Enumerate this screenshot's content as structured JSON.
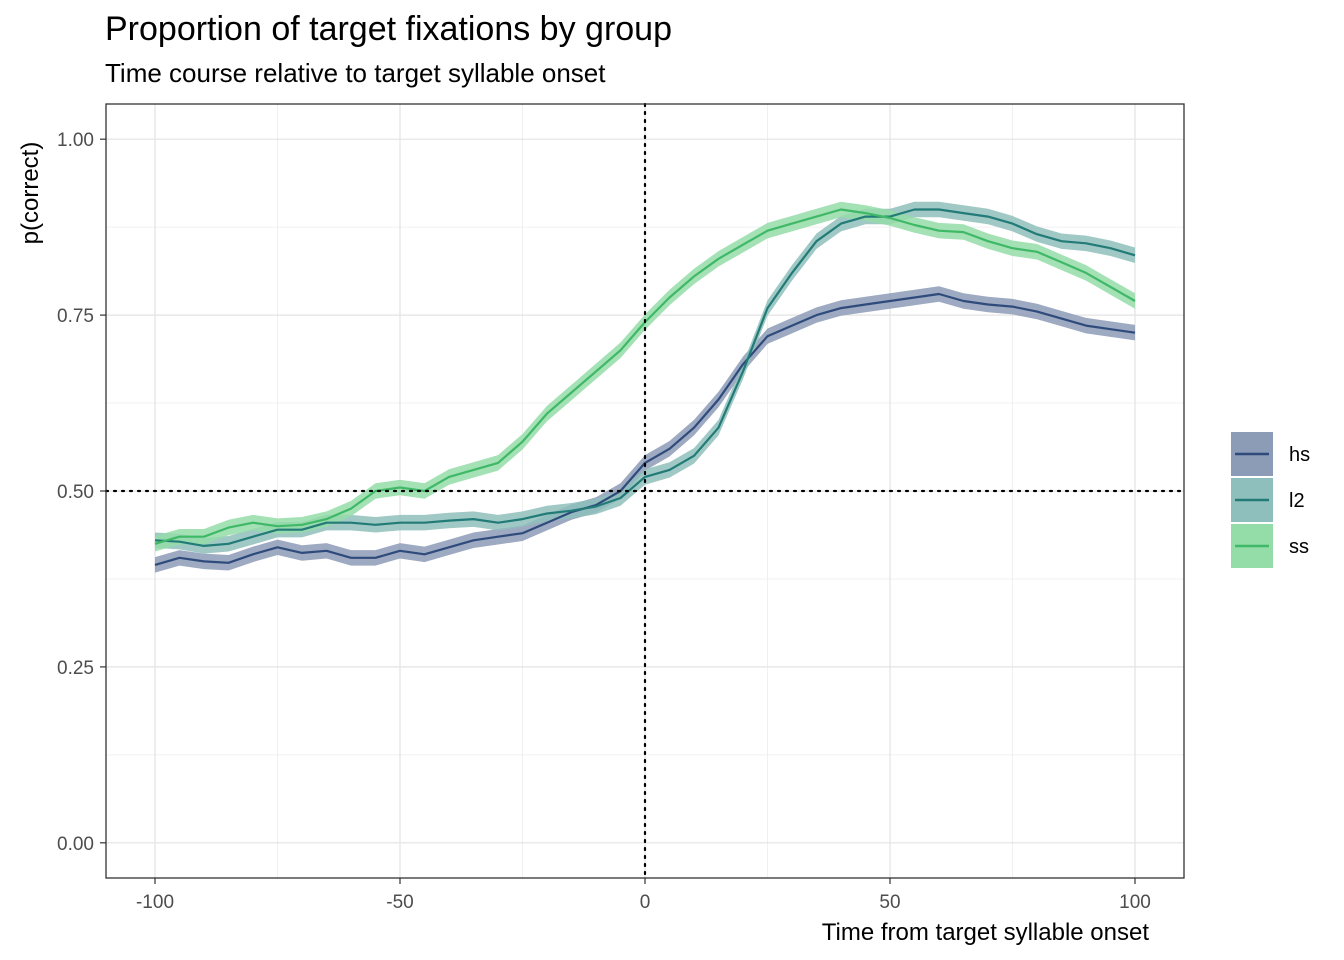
{
  "chart_data": {
    "type": "line",
    "title": "Proportion of target fixations by group",
    "subtitle": "Time course relative to target syllable onset",
    "xlabel": "Time from target syllable onset",
    "ylabel": "p(correct)",
    "xlim": [
      -110,
      110
    ],
    "ylim": [
      -0.05,
      1.05
    ],
    "x_ticks": [
      {
        "value": -100,
        "label": "-100"
      },
      {
        "value": -50,
        "label": "-50"
      },
      {
        "value": 0,
        "label": "0"
      },
      {
        "value": 50,
        "label": "50"
      },
      {
        "value": 100,
        "label": "100"
      }
    ],
    "y_ticks": [
      {
        "value": 0,
        "label": "0.00"
      },
      {
        "value": 0.25,
        "label": "0.25"
      },
      {
        "value": 0.5,
        "label": "0.50"
      },
      {
        "value": 0.75,
        "label": "0.75"
      },
      {
        "value": 1,
        "label": "1.00"
      }
    ],
    "grid": true,
    "legend_position": "right",
    "reference_lines": {
      "x": 0,
      "y": 0.5,
      "style": "dotted"
    },
    "band_halfwidth": 0.011,
    "x": [
      -100,
      -95,
      -90,
      -85,
      -80,
      -75,
      -70,
      -65,
      -60,
      -55,
      -50,
      -45,
      -40,
      -35,
      -30,
      -25,
      -20,
      -15,
      -10,
      -5,
      0,
      5,
      10,
      15,
      20,
      25,
      30,
      35,
      40,
      45,
      50,
      55,
      60,
      65,
      70,
      75,
      80,
      85,
      90,
      95,
      100
    ],
    "series": [
      {
        "name": "hs",
        "color": "#2f4b7c",
        "band_color": "#8c9bb6",
        "values": [
          0.395,
          0.405,
          0.4,
          0.398,
          0.41,
          0.42,
          0.412,
          0.415,
          0.405,
          0.405,
          0.415,
          0.41,
          0.42,
          0.43,
          0.435,
          0.44,
          0.455,
          0.47,
          0.48,
          0.5,
          0.54,
          0.56,
          0.59,
          0.63,
          0.68,
          0.72,
          0.735,
          0.75,
          0.76,
          0.765,
          0.77,
          0.775,
          0.78,
          0.77,
          0.765,
          0.762,
          0.755,
          0.745,
          0.735,
          0.73,
          0.725
        ]
      },
      {
        "name": "l2",
        "color": "#227b77",
        "band_color": "#8fbfbc",
        "values": [
          0.43,
          0.428,
          0.422,
          0.425,
          0.435,
          0.445,
          0.445,
          0.455,
          0.455,
          0.452,
          0.455,
          0.455,
          0.458,
          0.46,
          0.455,
          0.46,
          0.468,
          0.472,
          0.478,
          0.49,
          0.52,
          0.53,
          0.55,
          0.59,
          0.67,
          0.76,
          0.81,
          0.855,
          0.88,
          0.89,
          0.89,
          0.9,
          0.9,
          0.895,
          0.89,
          0.88,
          0.865,
          0.855,
          0.852,
          0.845,
          0.835
        ]
      },
      {
        "name": "ss",
        "color": "#3fb867",
        "band_color": "#94dca8",
        "values": [
          0.425,
          0.435,
          0.435,
          0.448,
          0.455,
          0.45,
          0.452,
          0.46,
          0.475,
          0.5,
          0.505,
          0.5,
          0.52,
          0.53,
          0.54,
          0.57,
          0.61,
          0.64,
          0.67,
          0.7,
          0.74,
          0.775,
          0.805,
          0.83,
          0.85,
          0.87,
          0.88,
          0.89,
          0.9,
          0.895,
          0.888,
          0.878,
          0.87,
          0.868,
          0.855,
          0.845,
          0.84,
          0.825,
          0.81,
          0.79,
          0.77
        ]
      }
    ]
  }
}
